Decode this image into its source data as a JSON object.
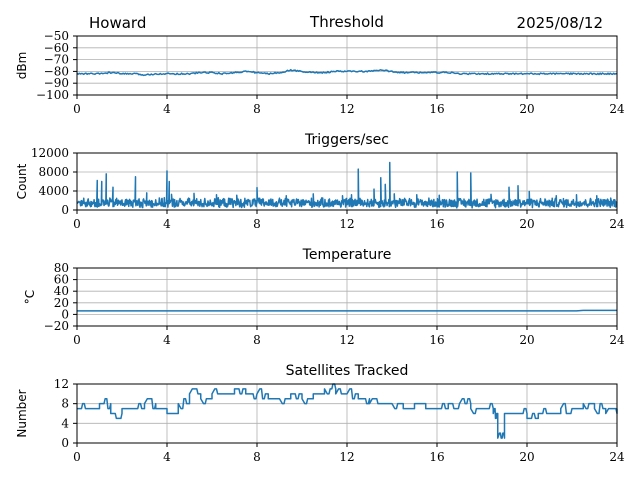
{
  "header": {
    "station": "Howard",
    "date": "2025/08/12"
  },
  "colors": {
    "series": "#1f77b4",
    "grid": "#b0b0b0",
    "axis": "#000000",
    "background": "#ffffff"
  },
  "chart_data": [
    {
      "id": "threshold",
      "type": "line",
      "title": "Threshold",
      "xlabel": "",
      "ylabel": "dBm",
      "xlim": [
        0,
        24
      ],
      "ylim": [
        -100,
        -50
      ],
      "xticks": [
        0,
        4,
        8,
        12,
        16,
        20,
        24
      ],
      "yticks": [
        -100,
        -90,
        -80,
        -70,
        -60,
        -50
      ],
      "ytick_labels": [
        "−100",
        "−90",
        "−80",
        "−70",
        "−60",
        "−50"
      ],
      "grid": true,
      "series": [
        {
          "x": [
            0,
            0.5,
            1,
            1.5,
            2,
            2.5,
            3,
            3.5,
            4,
            4.5,
            5,
            5.5,
            6,
            6.5,
            7,
            7.5,
            8,
            8.5,
            9,
            9.5,
            10,
            10.5,
            11,
            11.5,
            12,
            12.5,
            13,
            13.5,
            14,
            14.5,
            15,
            15.5,
            16,
            16.5,
            17,
            17.5,
            18,
            18.5,
            19,
            19.5,
            20,
            20.5,
            21,
            21.5,
            22,
            22.5,
            23,
            23.5,
            24
          ],
          "y": [
            -82,
            -82,
            -82,
            -81,
            -82,
            -82,
            -83,
            -82,
            -82,
            -82,
            -82,
            -81,
            -81,
            -82,
            -81,
            -80,
            -81,
            -82,
            -81,
            -79,
            -80,
            -81,
            -81,
            -80,
            -80,
            -80,
            -80,
            -79,
            -80,
            -81,
            -81,
            -81,
            -81,
            -81,
            -82,
            -82,
            -82,
            -82,
            -82,
            -82,
            -82,
            -82,
            -82,
            -82,
            -82,
            -82,
            -82,
            -82,
            -82
          ]
        }
      ]
    },
    {
      "id": "triggers",
      "type": "line",
      "title": "Triggers/sec",
      "xlabel": "",
      "ylabel": "Count",
      "xlim": [
        0,
        24
      ],
      "ylim": [
        0,
        12000
      ],
      "xticks": [
        0,
        4,
        8,
        12,
        16,
        20,
        24
      ],
      "yticks": [
        0,
        4000,
        8000,
        12000
      ],
      "ytick_labels": [
        "0",
        "4000",
        "8000",
        "12000"
      ],
      "grid": true,
      "series": [
        {
          "baseline": 1500,
          "noise": 1100,
          "spikes": [
            {
              "x": 0.9,
              "y": 6200
            },
            {
              "x": 1.1,
              "y": 6000
            },
            {
              "x": 1.3,
              "y": 7600
            },
            {
              "x": 1.6,
              "y": 4800
            },
            {
              "x": 2.6,
              "y": 7000
            },
            {
              "x": 3.1,
              "y": 3600
            },
            {
              "x": 4.0,
              "y": 8200
            },
            {
              "x": 4.1,
              "y": 6000
            },
            {
              "x": 4.2,
              "y": 3300
            },
            {
              "x": 5.2,
              "y": 3500
            },
            {
              "x": 6.2,
              "y": 3200
            },
            {
              "x": 7.1,
              "y": 3100
            },
            {
              "x": 8.0,
              "y": 4700
            },
            {
              "x": 9.3,
              "y": 3000
            },
            {
              "x": 10.5,
              "y": 3400
            },
            {
              "x": 11.8,
              "y": 3000
            },
            {
              "x": 12.2,
              "y": 3200
            },
            {
              "x": 12.5,
              "y": 8600
            },
            {
              "x": 13.2,
              "y": 4400
            },
            {
              "x": 13.5,
              "y": 6800
            },
            {
              "x": 13.7,
              "y": 5400
            },
            {
              "x": 13.9,
              "y": 10000
            },
            {
              "x": 14.1,
              "y": 3400
            },
            {
              "x": 15.1,
              "y": 3200
            },
            {
              "x": 16.1,
              "y": 3100
            },
            {
              "x": 16.9,
              "y": 8000
            },
            {
              "x": 17.5,
              "y": 7800
            },
            {
              "x": 18.4,
              "y": 3300
            },
            {
              "x": 19.2,
              "y": 4800
            },
            {
              "x": 19.6,
              "y": 5100
            },
            {
              "x": 20.1,
              "y": 3900
            },
            {
              "x": 21.3,
              "y": 3000
            },
            {
              "x": 22.2,
              "y": 3200
            },
            {
              "x": 23.1,
              "y": 3000
            }
          ]
        }
      ]
    },
    {
      "id": "temperature",
      "type": "line",
      "title": "Temperature",
      "xlabel": "",
      "ylabel": "°C",
      "xlim": [
        0,
        24
      ],
      "ylim": [
        -20,
        80
      ],
      "xticks": [
        0,
        4,
        8,
        12,
        16,
        20,
        24
      ],
      "yticks": [
        -20,
        0,
        20,
        40,
        60,
        80
      ],
      "ytick_labels": [
        "−20",
        "0",
        "20",
        "40",
        "60",
        "80"
      ],
      "grid": true,
      "series": [
        {
          "x": [
            0,
            4,
            8,
            12,
            16,
            20,
            22.2,
            22.5,
            24
          ],
          "y": [
            6,
            6,
            6,
            6,
            6,
            6,
            6,
            7,
            7
          ]
        }
      ]
    },
    {
      "id": "satellites",
      "type": "line",
      "title": "Satellites Tracked",
      "xlabel": "",
      "ylabel": "Number",
      "xlim": [
        0,
        24
      ],
      "ylim": [
        0,
        12
      ],
      "xticks": [
        0,
        4,
        8,
        12,
        16,
        20,
        24
      ],
      "yticks": [
        0,
        4,
        8,
        12
      ],
      "ytick_labels": [
        "0",
        "4",
        "8",
        "12"
      ],
      "grid": true,
      "series": [
        {
          "x": [
            0,
            0.5,
            1,
            1.5,
            2,
            2.5,
            3,
            3.5,
            4,
            4.5,
            5,
            5.5,
            6,
            6.5,
            7,
            7.5,
            8,
            8.5,
            9,
            9.5,
            10,
            10.5,
            11,
            11.5,
            12,
            12.5,
            13,
            13.5,
            14,
            14.5,
            15,
            15.5,
            16,
            16.5,
            17,
            17.5,
            18,
            18.5,
            18.7,
            19,
            19.5,
            20,
            20.5,
            21,
            21.5,
            22,
            22.5,
            23,
            23.5,
            24
          ],
          "y": [
            7,
            7,
            8,
            6,
            7,
            7,
            8,
            7,
            6,
            8,
            10,
            9,
            10,
            10,
            11,
            10,
            10,
            9,
            9,
            10,
            9,
            10,
            11,
            10,
            10,
            9,
            8,
            8,
            8,
            7,
            8,
            7,
            7,
            8,
            8,
            7,
            7,
            6,
            1,
            6,
            6,
            5,
            6,
            6,
            7,
            7,
            8,
            7,
            6,
            7
          ]
        }
      ]
    }
  ]
}
